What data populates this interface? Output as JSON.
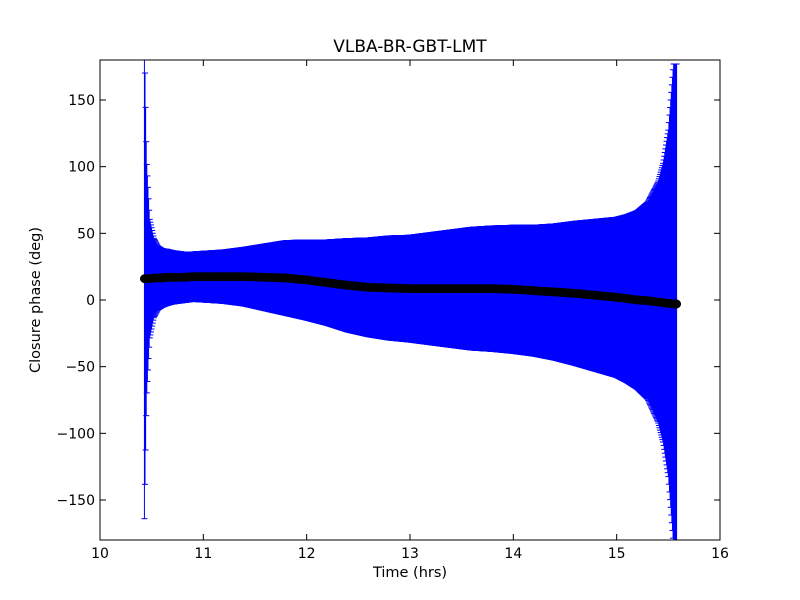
{
  "chart_data": {
    "type": "scatter",
    "title": "VLBA-BR-GBT-LMT",
    "xlabel": "Time (hrs)",
    "ylabel": "Closure phase (deg)",
    "xlim": [
      10,
      16
    ],
    "ylim": [
      -180,
      180
    ],
    "x_ticks": [
      10,
      11,
      12,
      13,
      14,
      15,
      16
    ],
    "y_ticks": [
      -150,
      -100,
      -50,
      0,
      50,
      100,
      150
    ],
    "x_tick_labels": [
      "10",
      "11",
      "12",
      "13",
      "14",
      "15",
      "16"
    ],
    "y_tick_labels": [
      "−150",
      "−100",
      "−50",
      "0",
      "50",
      "100",
      "150"
    ],
    "grid": false,
    "legend": "none",
    "colors": {
      "errorbar": "#0000ff",
      "marker": "#000000"
    },
    "series": [
      {
        "x": [
          10.43,
          10.45,
          10.48,
          10.52,
          10.56,
          10.6,
          10.65,
          10.7,
          10.8,
          10.9,
          11.0,
          11.2,
          11.4,
          11.6,
          11.8,
          12.0,
          12.2,
          12.4,
          12.6,
          12.8,
          13.0,
          13.2,
          13.4,
          13.6,
          13.8,
          14.0,
          14.2,
          14.4,
          14.6,
          14.8,
          15.0,
          15.1,
          15.2,
          15.3,
          15.4,
          15.45,
          15.5,
          15.55,
          15.58
        ],
        "y": [
          16,
          16,
          16,
          16.5,
          16.5,
          16.5,
          17,
          17,
          17,
          17.5,
          17.5,
          17.5,
          17.5,
          17,
          16.5,
          15,
          13,
          11,
          9.5,
          9,
          8.5,
          8.5,
          8.5,
          8.5,
          8.5,
          8,
          7,
          6,
          5,
          3.5,
          2,
          1,
          0,
          -0.5,
          -1.5,
          -2,
          -2.5,
          -3,
          -3
        ],
        "yerr": [
          180,
          90,
          45,
          30,
          24,
          22,
          21,
          20,
          19,
          18.5,
          19,
          20,
          22,
          25,
          28,
          30,
          32,
          35,
          37,
          39,
          40,
          42,
          44,
          46,
          47,
          48,
          49,
          51,
          54,
          57,
          60,
          63,
          67,
          74,
          90,
          105,
          130,
          180,
          180
        ]
      }
    ]
  }
}
